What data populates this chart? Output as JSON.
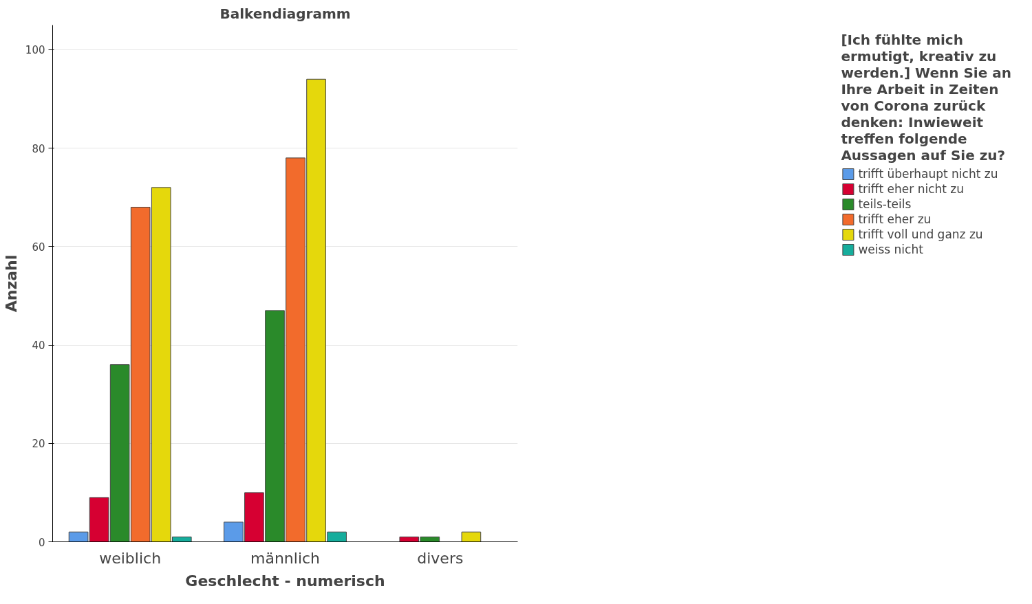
{
  "chart_data": {
    "type": "bar",
    "title": "Balkendiagramm",
    "xlabel": "Geschlecht - numerisch",
    "ylabel": "Anzahl",
    "legend_title": "[Ich fühlte mich ermutigt, kreativ zu werden.] Wenn Sie an Ihre Arbeit in Zeiten von Corona zurück denken: Inwieweit treffen folgende Aussagen auf Sie zu?",
    "categories": [
      "weiblich",
      "männlich",
      "divers"
    ],
    "ylim": [
      0,
      105
    ],
    "yticks": [
      0,
      20,
      40,
      60,
      80,
      100
    ],
    "grid": "y",
    "legend": "right",
    "series": [
      {
        "name": "trifft überhaupt nicht zu",
        "color": "#5b9be8",
        "values": [
          2,
          4,
          null
        ]
      },
      {
        "name": "trifft eher nicht zu",
        "color": "#d60032",
        "values": [
          9,
          10,
          1
        ]
      },
      {
        "name": "teils-teils",
        "color": "#2a8a2a",
        "values": [
          36,
          47,
          1
        ]
      },
      {
        "name": "trifft eher zu",
        "color": "#f26b2c",
        "values": [
          68,
          78,
          null
        ]
      },
      {
        "name": "trifft voll und ganz zu",
        "color": "#e5d80c",
        "values": [
          72,
          94,
          2
        ]
      },
      {
        "name": "weiss nicht",
        "color": "#16ad9c",
        "values": [
          1,
          2,
          null
        ]
      }
    ]
  }
}
